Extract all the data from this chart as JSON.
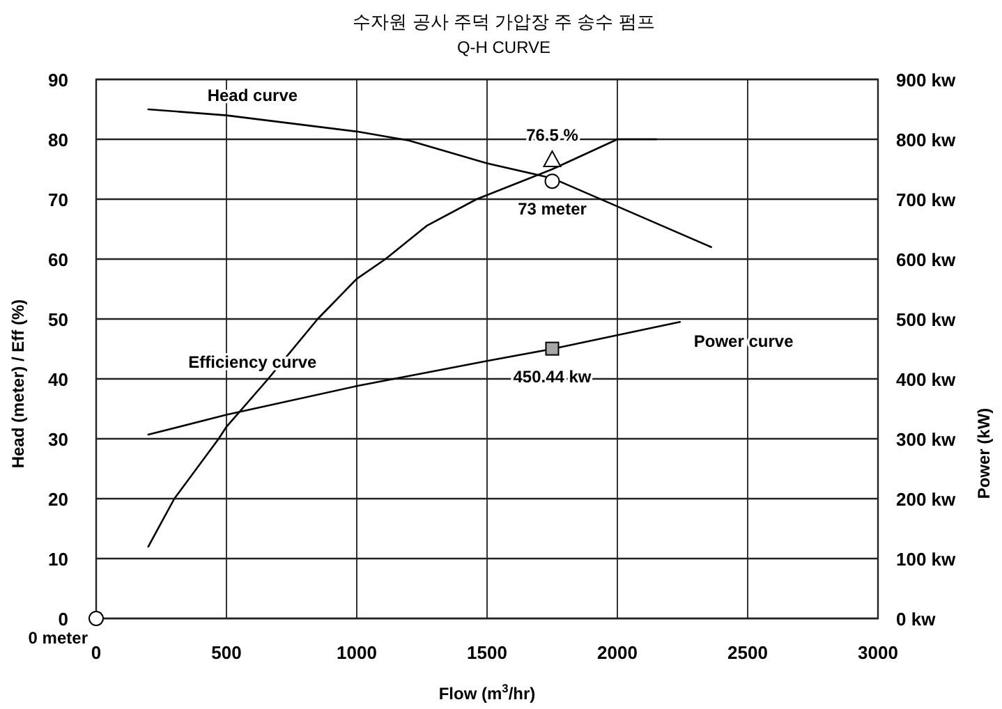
{
  "chart_data": {
    "type": "line",
    "title": "수자원 공사 주덕 가압장 주 송수 펌프",
    "subtitle": "Q-H CURVE",
    "xlabel": "Flow (m$^{3}$/hr)",
    "ylabel": "Head (meter) / Eff (%)",
    "y2label": "Power (kW)",
    "xlim": [
      0,
      3000
    ],
    "xticks": [
      0,
      500,
      1000,
      1500,
      2000,
      2500,
      3000
    ],
    "ylim": [
      0,
      90
    ],
    "yticks": [
      0,
      10,
      20,
      30,
      40,
      50,
      60,
      70,
      80,
      90
    ],
    "y2lim": [
      0,
      900
    ],
    "y2ticks": [
      {
        "value": 0,
        "label": "0 kw"
      },
      {
        "value": 100,
        "label": "100 kw"
      },
      {
        "value": 200,
        "label": "200 kw"
      },
      {
        "value": 300,
        "label": "300 kw"
      },
      {
        "value": 400,
        "label": "400 kw"
      },
      {
        "value": 500,
        "label": "500 kw"
      },
      {
        "value": 600,
        "label": "600 kw"
      },
      {
        "value": 700,
        "label": "700 kw"
      },
      {
        "value": 800,
        "label": "800 kw"
      },
      {
        "value": 900,
        "label": "900 kw"
      }
    ],
    "grid": true,
    "series": [
      {
        "name": "Head curve",
        "type": "line",
        "color": "#000000",
        "x": [
          200,
          500,
          1000,
          1200,
          1500,
          1750,
          2000,
          2360
        ],
        "values": [
          85,
          84,
          81.3,
          79.8,
          76,
          73.5,
          68.8,
          62
        ]
      },
      {
        "name": "Efficiency curve",
        "type": "line",
        "color": "#000000",
        "x": [
          200,
          300,
          470,
          500,
          660,
          850,
          1000,
          1110,
          1270,
          1460,
          1750,
          2000,
          2150
        ],
        "values": [
          12,
          20,
          30,
          32,
          40,
          50,
          56.7,
          60,
          65.6,
          70,
          75,
          80,
          80
        ]
      },
      {
        "name": "Power curve",
        "type": "line",
        "axis": "y2",
        "color": "#000000",
        "x": [
          200,
          500,
          1000,
          1500,
          1750,
          2240
        ],
        "values": [
          307,
          340,
          388,
          430,
          450,
          495
        ]
      },
      {
        "type": "scatter",
        "marker": "circle",
        "color": "#ffffff",
        "x": [
          0,
          1750
        ],
        "values": [
          0,
          73
        ],
        "value_labels": [
          "0 meter",
          "73 meter"
        ]
      },
      {
        "type": "scatter",
        "marker": "triangle",
        "color": "#ffffff",
        "x": [
          1750
        ],
        "values": [
          76.5
        ],
        "value_labels": [
          "76.5 %"
        ]
      },
      {
        "type": "scatter",
        "marker": "square",
        "axis": "y2",
        "color": "#a6a6a6",
        "x": [
          1750
        ],
        "values": [
          450.44
        ],
        "value_labels": [
          "450.44 kw"
        ]
      }
    ]
  }
}
